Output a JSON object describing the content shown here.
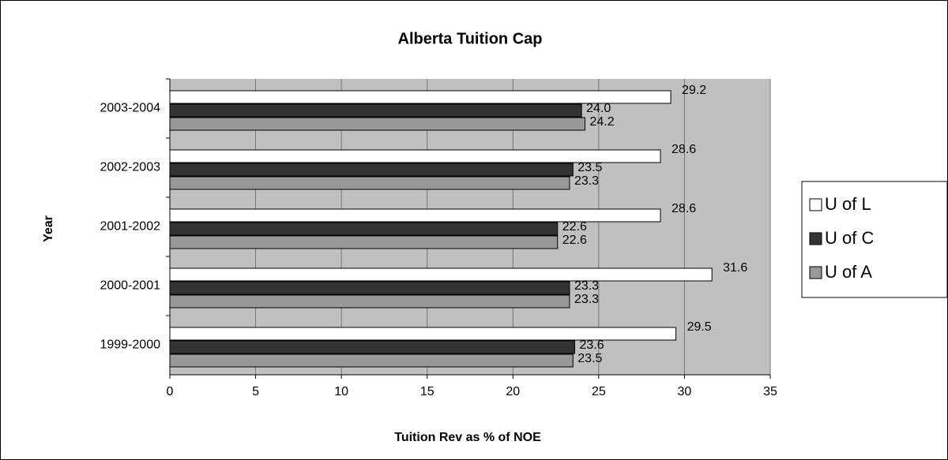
{
  "chart_data": {
    "type": "hbar",
    "title": "Alberta Tuition Cap",
    "x_label": "Tuition Rev as % of NOE",
    "y_label": "Year",
    "categories": [
      "2003-2004",
      "2002-2003",
      "2001-2002",
      "2000-2001",
      "1999-2000"
    ],
    "series": [
      {
        "name": "U of L",
        "color": "#ffffff",
        "values": [
          29.2,
          28.6,
          28.6,
          31.6,
          29.5
        ],
        "value_labels": [
          "29.2",
          "28.6",
          "28.6",
          "31.6",
          "29.5"
        ]
      },
      {
        "name": "U of C",
        "color": "#333333",
        "values": [
          24.0,
          23.5,
          22.6,
          23.3,
          23.6
        ],
        "value_labels": [
          "24.0",
          "23.5",
          "22.6",
          "23.3",
          "23.6"
        ]
      },
      {
        "name": "U of A",
        "color": "#999999",
        "values": [
          24.2,
          23.3,
          22.6,
          23.3,
          23.5
        ],
        "value_labels": [
          "24.2",
          "23.3",
          "22.6",
          "23.3",
          "23.5"
        ]
      }
    ],
    "xlim": [
      0,
      35
    ],
    "xticks": [
      0,
      5,
      10,
      15,
      20,
      25,
      30,
      35
    ],
    "grid": true,
    "legend": "right"
  }
}
